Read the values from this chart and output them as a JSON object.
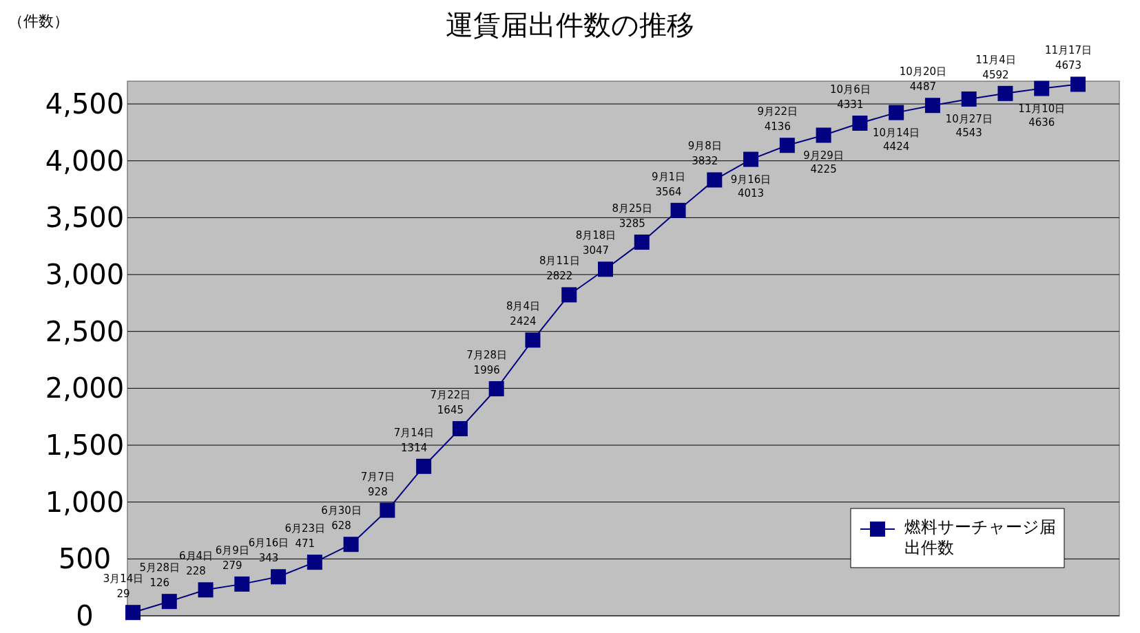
{
  "chart_data": {
    "type": "line",
    "title": "運賃届出件数の推移",
    "ylabel": "（件数）",
    "categories": [
      null,
      null,
      null,
      null,
      null,
      null,
      null,
      null,
      null,
      null,
      null,
      null,
      null,
      null,
      null,
      null,
      null,
      null,
      null,
      null,
      null,
      null,
      null,
      null,
      null,
      null,
      null
    ],
    "series": [
      {
        "name": "燃料サーチャージ届出件数",
        "color": "#000080",
        "values": [
          29,
          126,
          228,
          279,
          343,
          471,
          628,
          928,
          1314,
          1645,
          1996,
          2424,
          2822,
          3047,
          3285,
          3564,
          3832,
          4013,
          4136,
          4225,
          4331,
          4424,
          4487,
          4543,
          4592,
          4636,
          4673
        ]
      }
    ],
    "annotations": [
      {
        "text": "3月14日",
        "y": 29
      },
      {
        "text": "5月28日",
        "y": 126
      },
      {
        "text": "6月4日",
        "y": 228
      },
      {
        "text": "6月9日",
        "y": 279
      },
      {
        "text": "6月16日",
        "y": 343
      },
      {
        "text": "6月23日",
        "y": 471
      },
      {
        "text": "6月30日",
        "y": 628
      },
      {
        "text": "7月7日",
        "y": 928
      },
      {
        "text": "7月14日",
        "y": 1314
      },
      {
        "text": "7月22日",
        "y": 1645
      },
      {
        "text": "7月28日",
        "y": 1996
      },
      {
        "text": "8月4日",
        "y": 2424
      },
      {
        "text": "8月11日",
        "y": 2822
      },
      {
        "text": "8月18日",
        "y": 3047
      },
      {
        "text": "8月25日",
        "y": 3285
      },
      {
        "text": "9月1日",
        "y": 3564
      },
      {
        "text": "9月8日",
        "y": 3832
      },
      {
        "text": "9月16日",
        "y": 4013
      },
      {
        "text": "9月22日",
        "y": 4136
      },
      {
        "text": "9月29日",
        "y": 4225
      },
      {
        "text": "10月6日",
        "y": 4331
      },
      {
        "text": "10月14日",
        "y": 4424
      },
      {
        "text": "10月20日",
        "y": 4487
      },
      {
        "text": "10月27日",
        "y": 4543
      },
      {
        "text": "11月4日",
        "y": 4592
      },
      {
        "text": "11月10日",
        "y": 4636
      },
      {
        "text": "11月17日",
        "y": 4673
      }
    ],
    "ylim": [
      0,
      4700
    ],
    "yticks": [
      {
        "value": 0,
        "label": "0"
      },
      {
        "value": 500,
        "label": "500"
      },
      {
        "value": 1000,
        "label": "1,000"
      },
      {
        "value": 1500,
        "label": "1,500"
      },
      {
        "value": 2000,
        "label": "2,000"
      },
      {
        "value": 2500,
        "label": "2,500"
      },
      {
        "value": 3000,
        "label": "3,000"
      },
      {
        "value": 3500,
        "label": "3,500"
      },
      {
        "value": 4000,
        "label": "4,000"
      },
      {
        "value": 4500,
        "label": "4,500"
      }
    ],
    "grid": "y",
    "legend": "bottom right",
    "marker": "square",
    "line_style": "solid",
    "data_labels": true
  }
}
